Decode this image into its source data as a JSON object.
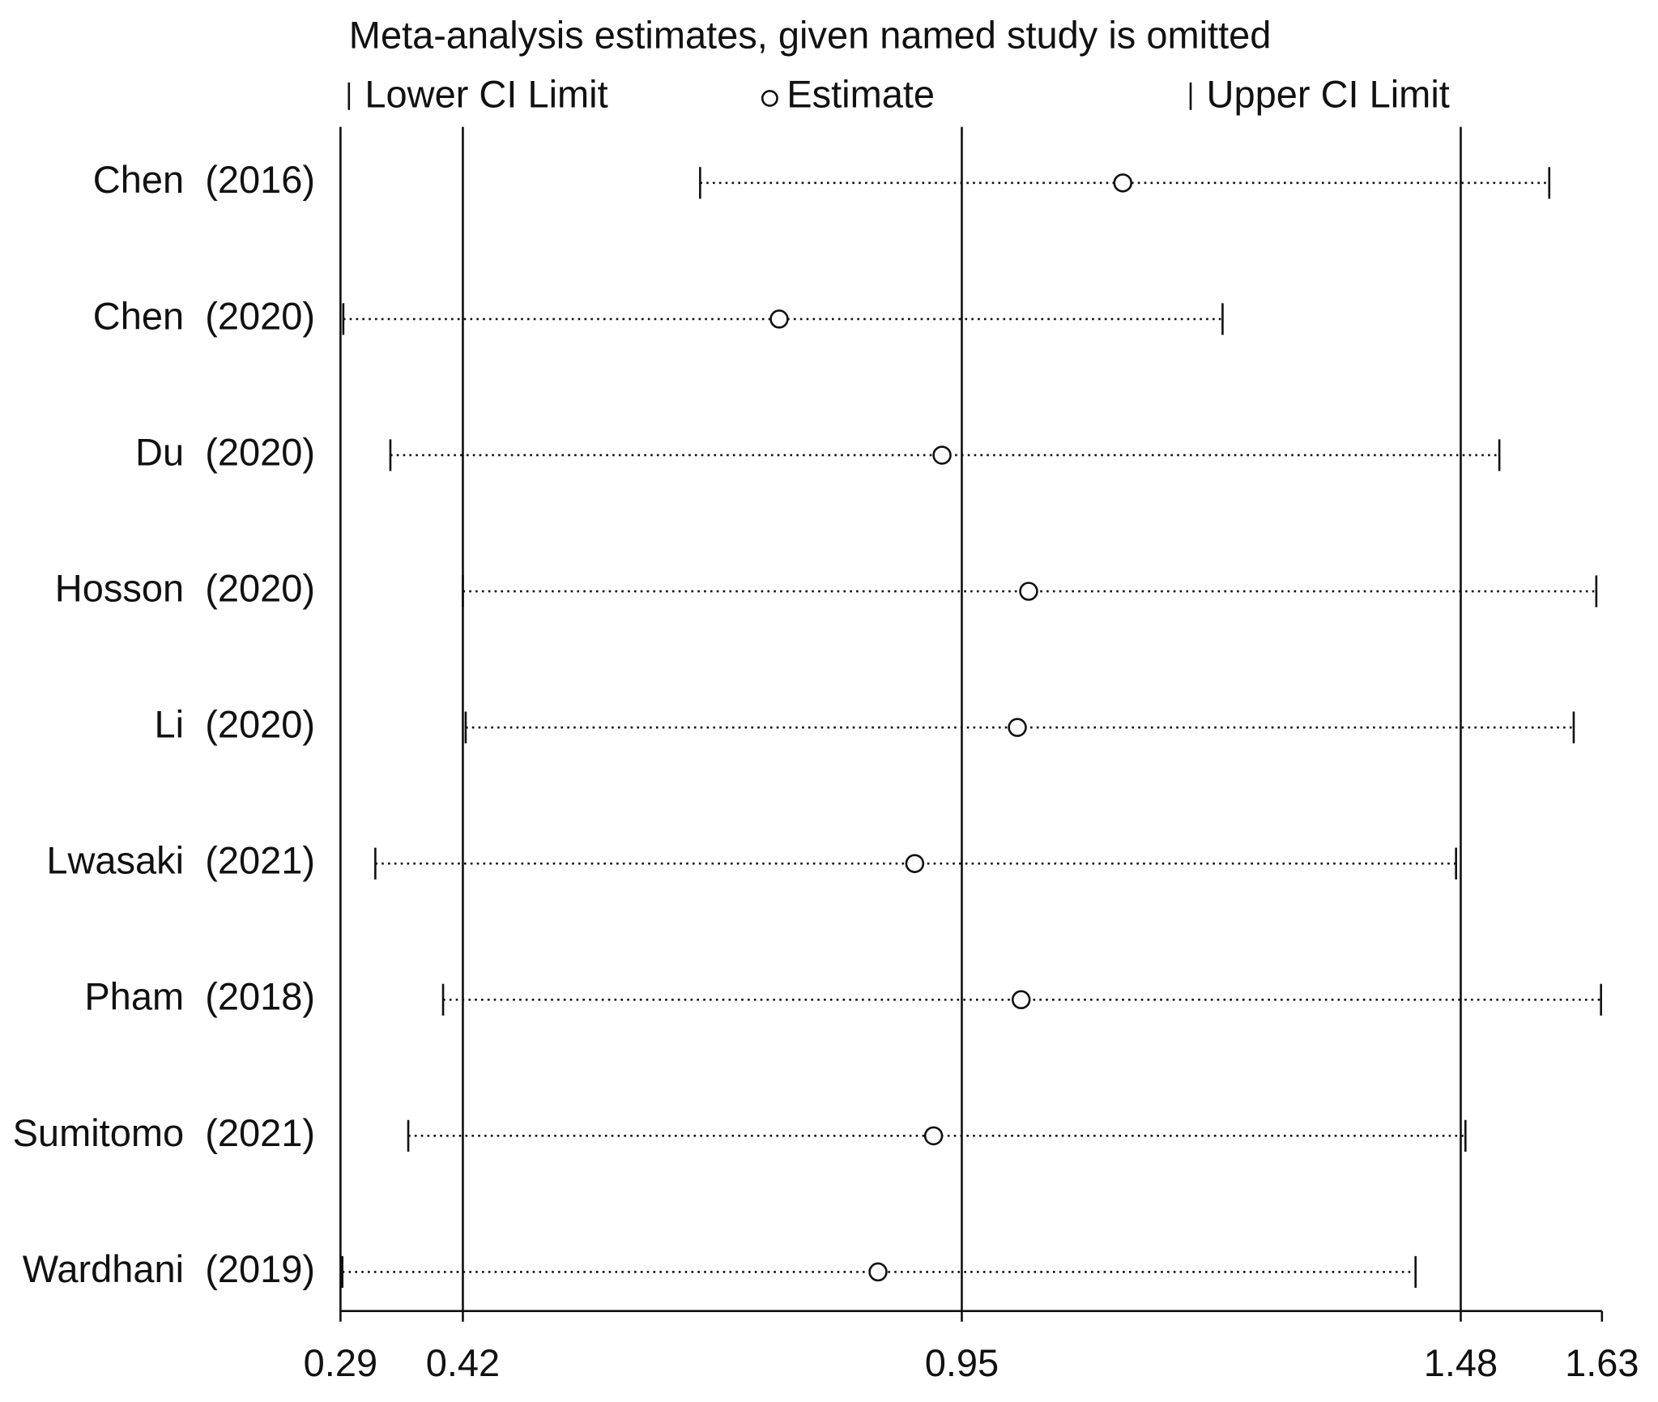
{
  "chart_data": {
    "type": "forest",
    "title": "Meta-analysis estimates, given named study is omitted",
    "legend": {
      "lower": "Lower CI Limit",
      "estimate": "Estimate",
      "upper": "Upper CI Limit"
    },
    "categories": [
      "Chen  (2016)",
      "Chen  (2020)",
      "Du  (2020)",
      "Hosson  (2020)",
      "Li  (2020)",
      "Lwasaki  (2021)",
      "Pham  (2018)",
      "Sumitomo  (2021)",
      "Wardhani  (2019)"
    ],
    "estimate": [
      1.121,
      0.756,
      0.929,
      1.021,
      1.009,
      0.9,
      1.013,
      0.92,
      0.861
    ],
    "lower": [
      0.672,
      0.293,
      0.343,
      0.42,
      0.423,
      0.327,
      0.399,
      0.362,
      0.292
    ],
    "upper": [
      1.574,
      1.227,
      1.521,
      1.624,
      1.6,
      1.475,
      1.629,
      1.485,
      1.432
    ],
    "color": "#111111",
    "xlim": [
      0.29,
      1.63
    ],
    "xticks": [
      0.29,
      0.42,
      0.95,
      1.48,
      1.63
    ],
    "ref_lines": [
      0.42,
      0.95,
      1.48
    ]
  }
}
